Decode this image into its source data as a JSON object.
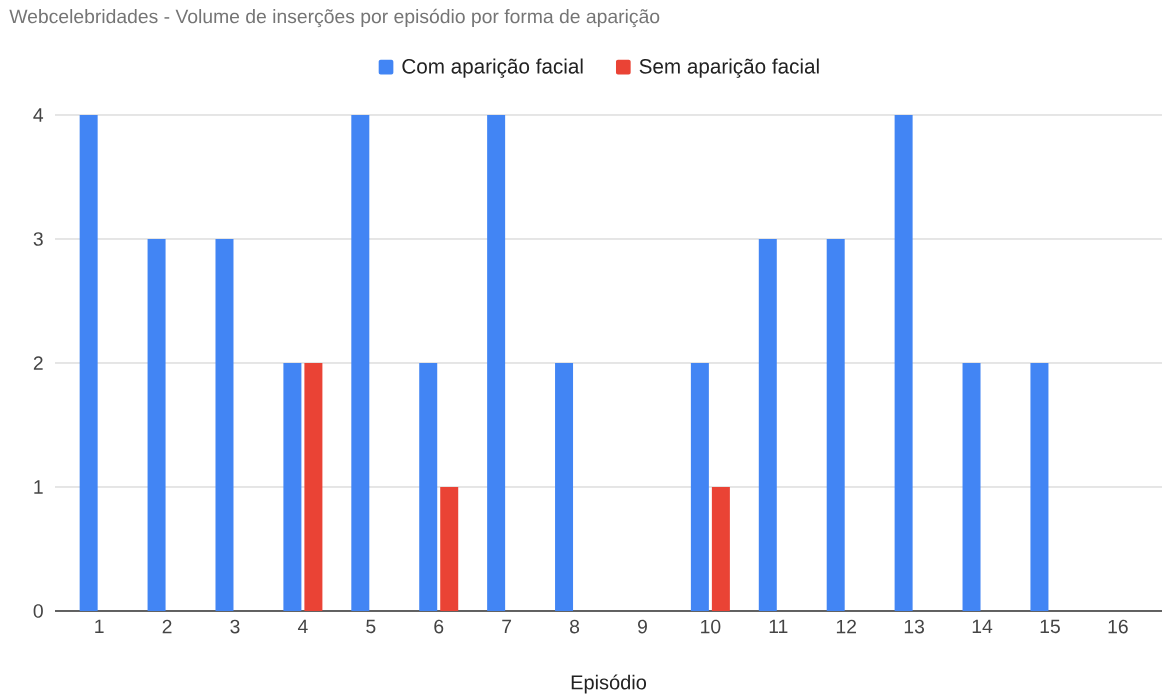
{
  "chart_data": {
    "type": "bar",
    "title": "Webcelebridades - Volume de inserções por episódio por forma de aparição",
    "xlabel": "Episódio",
    "categories": [
      "1",
      "2",
      "3",
      "4",
      "5",
      "6",
      "7",
      "8",
      "9",
      "10",
      "11",
      "12",
      "13",
      "14",
      "15",
      "16"
    ],
    "series": [
      {
        "name": "Com aparição facial",
        "color": "#4285f4",
        "values": [
          4,
          3,
          3,
          2,
          4,
          2,
          4,
          2,
          0,
          2,
          3,
          3,
          4,
          2,
          2,
          0
        ]
      },
      {
        "name": "Sem aparição facial",
        "color": "#ea4335",
        "values": [
          0,
          0,
          0,
          2,
          0,
          1,
          0,
          0,
          0,
          1,
          0,
          0,
          0,
          0,
          0,
          0
        ]
      }
    ],
    "ylim": [
      0,
      4
    ],
    "yticks": [
      0,
      1,
      2,
      3,
      4
    ],
    "grid": "y",
    "legend": "top"
  }
}
